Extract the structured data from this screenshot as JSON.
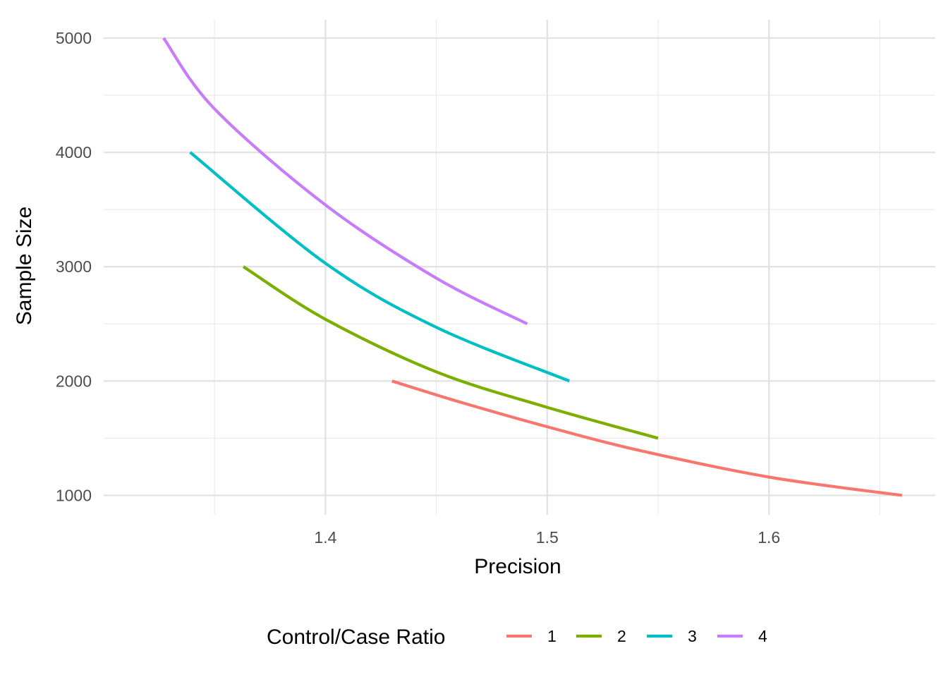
{
  "chart_data": {
    "type": "line",
    "title": "",
    "xlabel": "Precision",
    "ylabel": "Sample Size",
    "xlim": [
      1.3,
      1.675
    ],
    "ylim": [
      830,
      5160
    ],
    "x_ticks": [
      1.4,
      1.5,
      1.6
    ],
    "x_tick_labels": [
      "1.4",
      "1.5",
      "1.6"
    ],
    "x_minor_ticks": [
      1.35,
      1.45,
      1.55,
      1.65
    ],
    "y_ticks": [
      1000,
      2000,
      3000,
      4000,
      5000
    ],
    "y_tick_labels": [
      "1000",
      "2000",
      "3000",
      "4000",
      "5000"
    ],
    "y_minor_ticks": [
      1500,
      2500,
      3500,
      4500
    ],
    "grid": true,
    "legend": {
      "title": "Control/Case Ratio",
      "position": "bottom"
    },
    "series": [
      {
        "name": "1",
        "color": "#F8766D",
        "x": [
          1.43,
          1.46,
          1.5,
          1.54,
          1.6,
          1.66
        ],
        "y": [
          2000,
          1820,
          1600,
          1400,
          1160,
          1000
        ]
      },
      {
        "name": "2",
        "color": "#7CAE00",
        "x": [
          1.363,
          1.4,
          1.45,
          1.5,
          1.55
        ],
        "y": [
          3000,
          2540,
          2080,
          1770,
          1500
        ]
      },
      {
        "name": "3",
        "color": "#00BFC4",
        "x": [
          1.339,
          1.4,
          1.45,
          1.51
        ],
        "y": [
          4000,
          3030,
          2470,
          2000
        ]
      },
      {
        "name": "4",
        "color": "#C77CFF",
        "x": [
          1.327,
          1.35,
          1.4,
          1.45,
          1.491
        ],
        "y": [
          5000,
          4380,
          3540,
          2900,
          2500
        ]
      }
    ]
  }
}
